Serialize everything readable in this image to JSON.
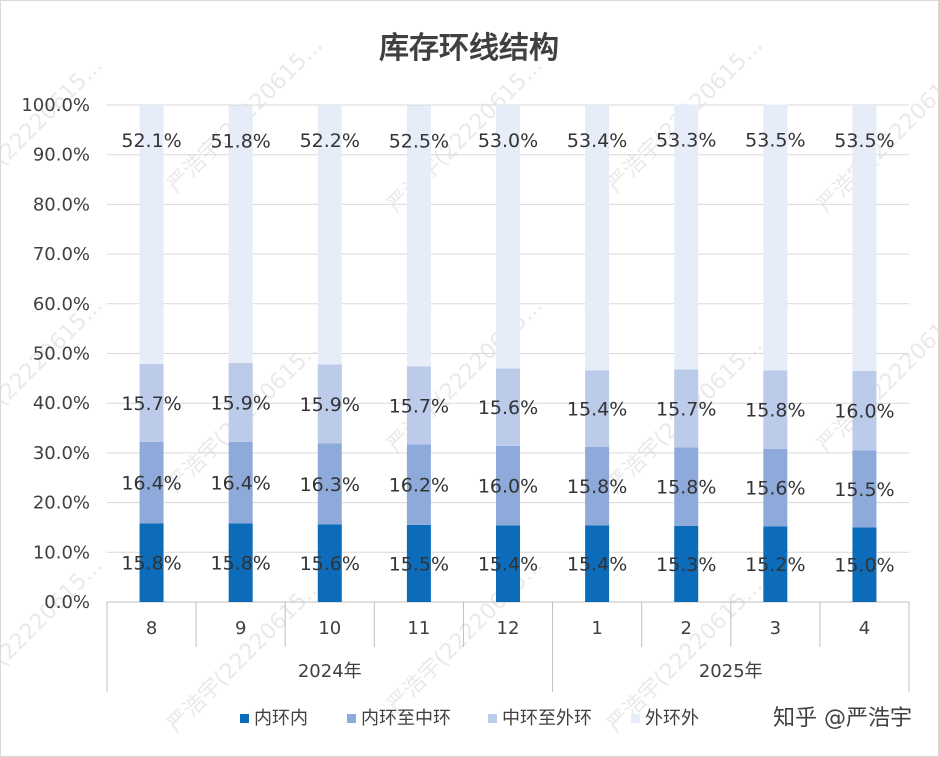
{
  "chart_data": {
    "type": "bar",
    "stacked": true,
    "title": "库存环线结构",
    "categories": [
      "8",
      "9",
      "10",
      "11",
      "12",
      "1",
      "2",
      "3",
      "4"
    ],
    "groups": [
      {
        "label": "2024年",
        "categories": [
          "8",
          "9",
          "10",
          "11",
          "12"
        ]
      },
      {
        "label": "2025年",
        "categories": [
          "1",
          "2",
          "3",
          "4"
        ]
      }
    ],
    "ylim": [
      0,
      100
    ],
    "yticks": [
      "0.0%",
      "10.0%",
      "20.0%",
      "30.0%",
      "40.0%",
      "50.0%",
      "60.0%",
      "70.0%",
      "80.0%",
      "90.0%",
      "100.0%"
    ],
    "grid": true,
    "legend_position": "bottom",
    "series": [
      {
        "name": "内环内",
        "color": "#0d6cba",
        "values": [
          15.8,
          15.8,
          15.6,
          15.5,
          15.4,
          15.4,
          15.3,
          15.2,
          15.0
        ],
        "labels": [
          "15.8%",
          "15.8%",
          "15.6%",
          "15.5%",
          "15.4%",
          "15.4%",
          "15.3%",
          "15.2%",
          "15.0%"
        ]
      },
      {
        "name": "内环至中环",
        "color": "#8eaadb",
        "values": [
          16.4,
          16.4,
          16.3,
          16.2,
          16.0,
          15.8,
          15.8,
          15.6,
          15.5
        ],
        "labels": [
          "16.4%",
          "16.4%",
          "16.3%",
          "16.2%",
          "16.0%",
          "15.8%",
          "15.8%",
          "15.6%",
          "15.5%"
        ]
      },
      {
        "name": "中环至外环",
        "color": "#bccbea",
        "values": [
          15.7,
          15.9,
          15.9,
          15.7,
          15.6,
          15.4,
          15.7,
          15.8,
          16.0
        ],
        "labels": [
          "15.7%",
          "15.9%",
          "15.9%",
          "15.7%",
          "15.6%",
          "15.4%",
          "15.7%",
          "15.8%",
          "16.0%"
        ]
      },
      {
        "name": "外环外",
        "color": "#e6edf8",
        "values": [
          52.1,
          51.8,
          52.2,
          52.5,
          53.0,
          53.4,
          53.3,
          53.5,
          53.5
        ],
        "labels": [
          "52.1%",
          "51.8%",
          "52.2%",
          "52.5%",
          "53.0%",
          "53.4%",
          "53.3%",
          "53.5%",
          "53.5%"
        ]
      }
    ]
  },
  "watermark": {
    "credit": "知乎 @严浩宇",
    "tile": "严浩宇(22220615…"
  }
}
